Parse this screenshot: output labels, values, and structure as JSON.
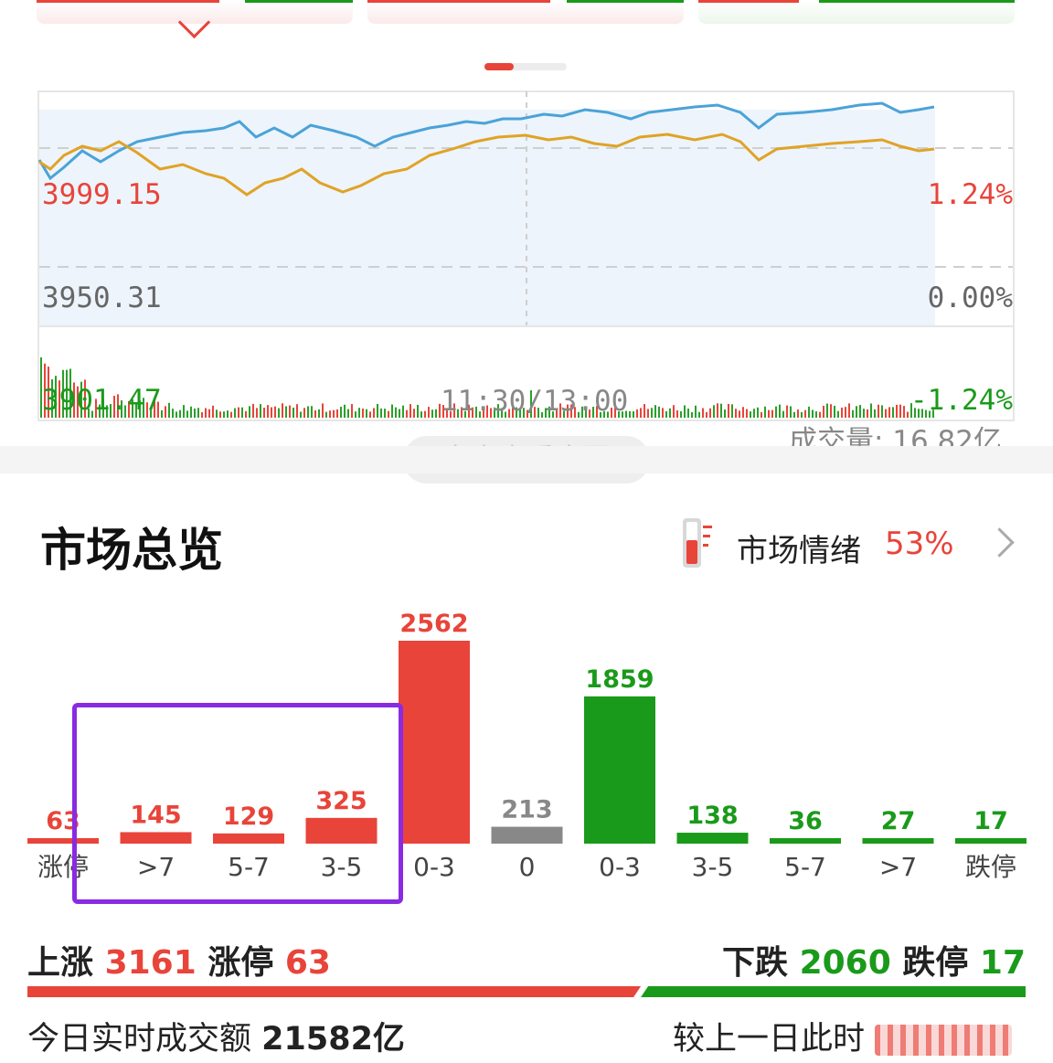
{
  "chart": {
    "high_price": "3999.15",
    "mid_price": "3950.31",
    "low_price": "3901.47",
    "high_change": "1.24%",
    "mid_change": "0.00%",
    "low_change": "-1.24%",
    "time_label": "11:30/13:00",
    "volume_label": "成交量: 16.82亿",
    "view_big_button": "点击查看大图"
  },
  "overview": {
    "title": "市场总览",
    "sentiment_label": "市场情绪",
    "sentiment_value": "53%"
  },
  "chart_data": {
    "type": "bar",
    "categories": [
      "涨停",
      ">7",
      "5-7",
      "3-5",
      "0-3",
      "0",
      "0-3",
      "3-5",
      "5-7",
      ">7",
      "跌停"
    ],
    "values": [
      63,
      145,
      129,
      325,
      2562,
      213,
      1859,
      138,
      36,
      27,
      17
    ],
    "value_labels": [
      "63",
      "145",
      "129",
      "325",
      "2562",
      "213",
      "1859",
      "138",
      "36",
      "27",
      "17"
    ],
    "colors": [
      "#e8443a",
      "#e8443a",
      "#e8443a",
      "#e8443a",
      "#e8443a",
      "#888888",
      "#1a9a1a",
      "#1a9a1a",
      "#1a9a1a",
      "#1a9a1a",
      "#1a9a1a"
    ]
  },
  "summary": {
    "up_label": "上涨",
    "up_count": "3161",
    "limit_up_label": "涨停",
    "limit_up_count": "63",
    "down_label": "下跌",
    "down_count": "2060",
    "limit_down_label": "跌停",
    "limit_down_count": "17",
    "up_ratio": 0.6054,
    "turnover_label": "今日实时成交额",
    "turnover_value": "21582亿",
    "compare_label": "较上一日此时"
  },
  "colors": {
    "up": "#e8443a",
    "down": "#1a9a1a",
    "flat": "#888888",
    "highlight": "#8a2be2"
  }
}
